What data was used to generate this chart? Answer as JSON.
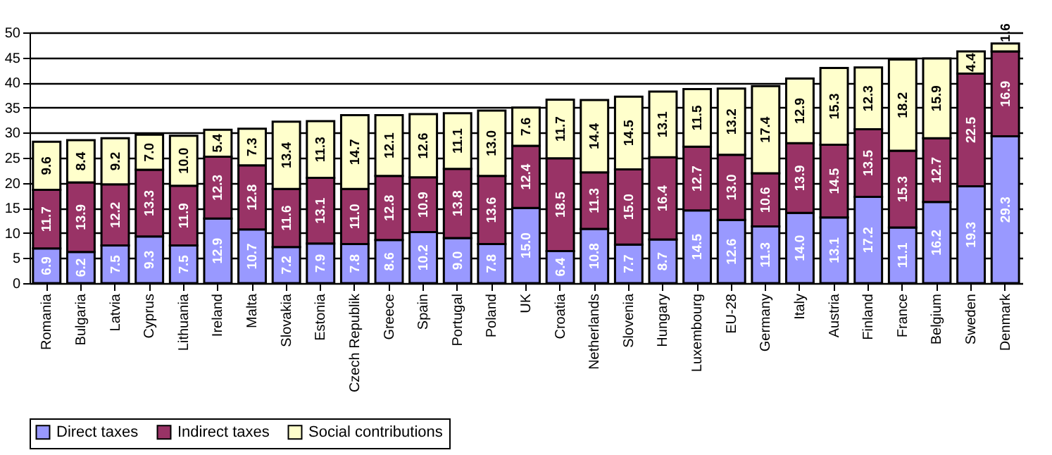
{
  "chart_data": {
    "type": "bar",
    "stacked": true,
    "grid": "y",
    "legend": "bottom",
    "categories": [
      "Romania",
      "Bulgaria",
      "Latvia",
      "Cyprus",
      "Lithuania",
      "Ireland",
      "Malta",
      "Slovakia",
      "Estonia",
      "Czech Republik",
      "Greece",
      "Spain",
      "Portugal",
      "Poland",
      "UK",
      "Croatia",
      "Netherlands",
      "Slovenia",
      "Hungary",
      "Luxembourg",
      "EU-28",
      "Germany",
      "Italy",
      "Austria",
      "Finland",
      "France",
      "Belgium",
      "Sweden",
      "Denmark"
    ],
    "ylim": [
      0,
      50
    ],
    "yticks": [
      0,
      5,
      10,
      15,
      20,
      25,
      30,
      35,
      40,
      45,
      50
    ],
    "series": [
      {
        "name": "Direct taxes",
        "color": "#9999ff",
        "values": [
          6.9,
          6.2,
          7.5,
          9.3,
          7.5,
          12.9,
          10.7,
          7.2,
          7.9,
          7.8,
          8.6,
          10.2,
          9.0,
          7.8,
          15.0,
          6.4,
          10.8,
          7.7,
          8.7,
          14.5,
          12.6,
          11.3,
          14.0,
          13.1,
          17.2,
          11.1,
          16.2,
          19.3,
          29.3
        ],
        "value_labels": [
          "6.9",
          "6.2",
          "7.5",
          "9.3",
          "7.5",
          "12.9",
          "10.7",
          "7.2",
          "7.9",
          "7.8",
          "8.6",
          "10.2",
          "9.0",
          "7.8",
          "15.0",
          "6.4",
          "10.8",
          "7.7",
          "8.7",
          "14.5",
          "12.6",
          "11.3",
          "14.0",
          "13.1",
          "17.2",
          "11.1",
          "16.2",
          "19.3",
          "29.3"
        ]
      },
      {
        "name": "Indirect taxes",
        "color": "#993366",
        "values": [
          11.7,
          13.9,
          12.2,
          13.3,
          11.9,
          12.3,
          12.8,
          11.6,
          13.1,
          11.0,
          12.8,
          10.9,
          13.8,
          13.6,
          12.4,
          18.5,
          11.3,
          15.0,
          16.4,
          12.7,
          13.0,
          10.6,
          13.9,
          14.5,
          13.5,
          15.3,
          12.7,
          22.5,
          16.9
        ],
        "value_labels": [
          "11.7",
          "13.9",
          "12.2",
          "13.3",
          "11.9",
          "12.3",
          "12.8",
          "11.6",
          "13.1",
          "11.0",
          "12.8",
          "10.9",
          "13.8",
          "13.6",
          "12.4",
          "18.5",
          "11.3",
          "15.0",
          "16.4",
          "12.7",
          "13.0",
          "10.6",
          "13.9",
          "14.5",
          "13.5",
          "15.3",
          "12.7",
          "22.5",
          "16.9"
        ]
      },
      {
        "name": "Social contributions",
        "color": "#ffffcc",
        "values": [
          9.6,
          8.4,
          9.2,
          7.0,
          10.0,
          5.4,
          7.3,
          13.4,
          11.3,
          14.7,
          12.1,
          12.6,
          11.1,
          13.0,
          7.6,
          11.7,
          14.4,
          14.5,
          13.1,
          11.5,
          13.2,
          17.4,
          12.9,
          15.3,
          12.3,
          18.2,
          15.9,
          4.4,
          1.6
        ],
        "value_labels": [
          "9.6",
          "8.4",
          "9.2",
          "7.0",
          "10.0",
          "5.4",
          "7.3",
          "13.4",
          "11.3",
          "14.7",
          "12.1",
          "12.6",
          "11.1",
          "13.0",
          "7.6",
          "11.7",
          "14.4",
          "14.5",
          "13.1",
          "11.5",
          "13.2",
          "17.4",
          "12.9",
          "15.3",
          "12.3",
          "18.2",
          "15.9",
          "4.4",
          "1.6"
        ]
      }
    ]
  }
}
